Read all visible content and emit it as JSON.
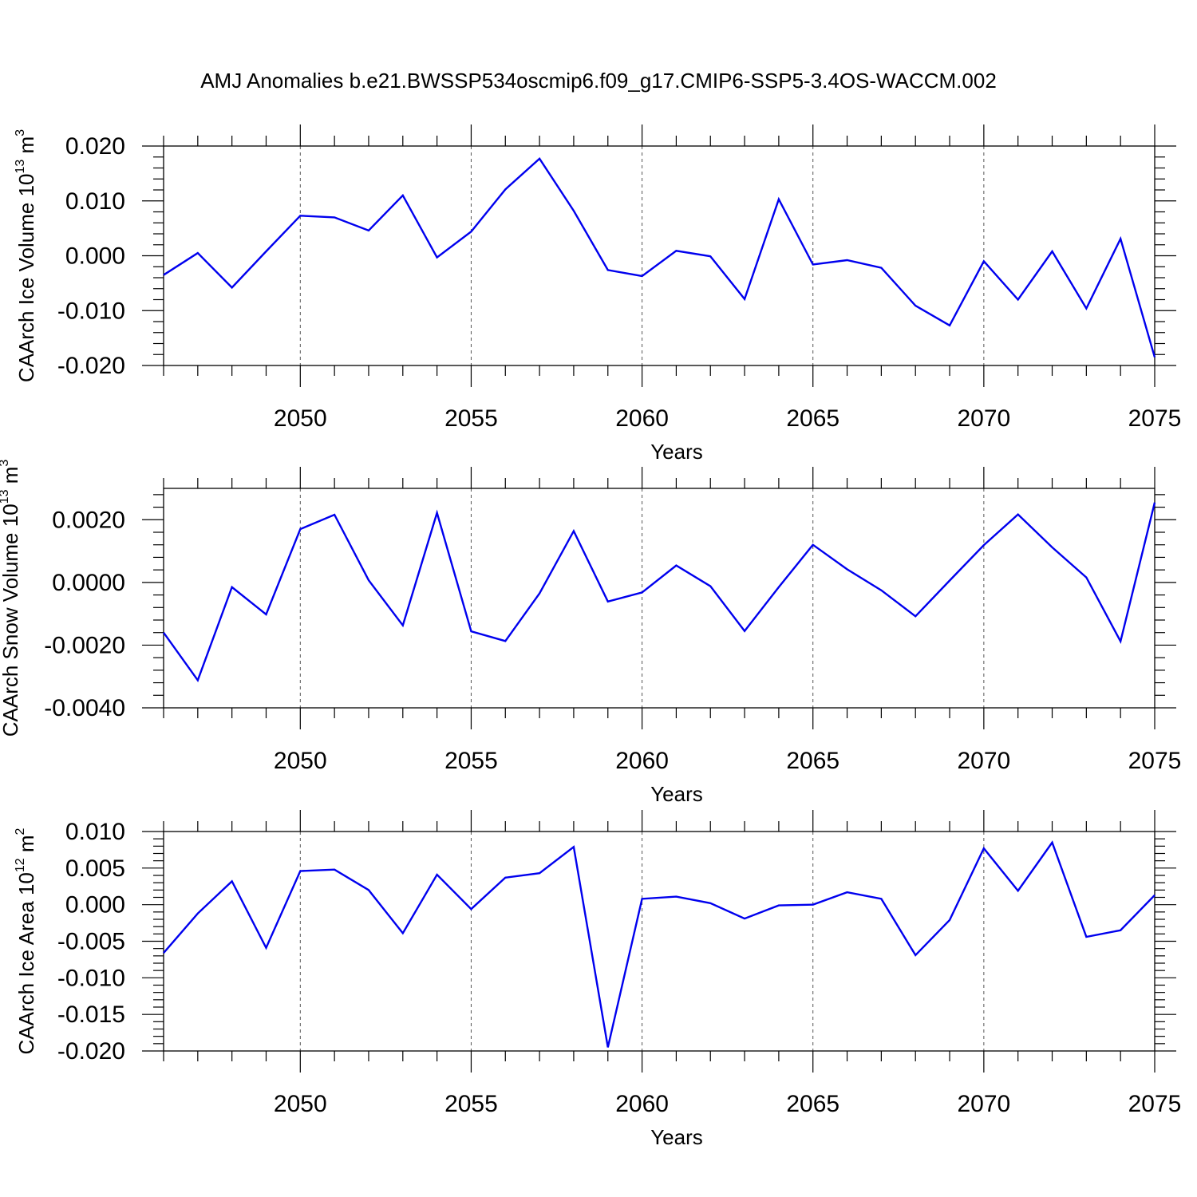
{
  "title": "AMJ Anomalies b.e21.BWSSP534oscmip6.f09_g17.CMIP6-SSP5-3.4OS-WACCM.002",
  "colors": {
    "line": "#0000ee",
    "axis": "#000000",
    "grid": "#555555"
  },
  "chart_data": [
    {
      "type": "line",
      "title": "AMJ Anomalies b.e21.BWSSP534oscmip6.f09_g17.CMIP6-SSP5-3.4OS-WACCM.002",
      "xlabel": "Years",
      "ylabel_base": "CAArch Ice Volume 10",
      "ylabel_exp": "13",
      "ylabel_unit": " m",
      "ylabel_unit_exp": "3",
      "xlim": [
        2046,
        2075
      ],
      "ylim": [
        -0.02,
        0.02
      ],
      "xticks": [
        2050,
        2055,
        2060,
        2065,
        2070,
        2075
      ],
      "xtick_labels": [
        "2050",
        "2055",
        "2060",
        "2065",
        "2070",
        "2075"
      ],
      "yticks": [
        -0.02,
        -0.01,
        0.0,
        0.01,
        0.02
      ],
      "ytick_labels": [
        "-0.020",
        "-0.010",
        "0.000",
        "0.010",
        "0.020"
      ],
      "grid": "vertical dashed at major x ticks",
      "series": [
        {
          "x": [
            2046,
            2047,
            2048,
            2049,
            2050,
            2051,
            2052,
            2053,
            2054,
            2055,
            2056,
            2057,
            2058,
            2059,
            2060,
            2061,
            2062,
            2063,
            2064,
            2065,
            2066,
            2067,
            2068,
            2069,
            2070,
            2071,
            2072,
            2073,
            2074,
            2075
          ],
          "values": [
            -0.0035,
            0.0005,
            -0.0058,
            0.0008,
            0.0073,
            0.007,
            0.0046,
            0.011,
            -0.0003,
            0.0044,
            0.0121,
            0.0177,
            0.0082,
            -0.0026,
            -0.0037,
            0.0009,
            -0.0001,
            -0.0079,
            0.0103,
            -0.0016,
            -0.0008,
            -0.0022,
            -0.0091,
            -0.0127,
            -0.001,
            -0.008,
            0.0008,
            -0.0096,
            0.0031,
            -0.0185
          ]
        }
      ]
    },
    {
      "type": "line",
      "xlabel": "Years",
      "ylabel_base": "CAArch Snow Volume 10",
      "ylabel_exp": "13",
      "ylabel_unit": " m",
      "ylabel_unit_exp": "3",
      "xlim": [
        2046,
        2075
      ],
      "ylim": [
        -0.004,
        0.003
      ],
      "xticks": [
        2050,
        2055,
        2060,
        2065,
        2070,
        2075
      ],
      "xtick_labels": [
        "2050",
        "2055",
        "2060",
        "2065",
        "2070",
        "2075"
      ],
      "yticks": [
        -0.004,
        -0.002,
        0.0,
        0.002
      ],
      "ytick_labels": [
        "-0.0040",
        "-0.0020",
        "0.0000",
        "0.0020"
      ],
      "grid": "vertical dashed at major x ticks",
      "series": [
        {
          "x": [
            2046,
            2047,
            2048,
            2049,
            2050,
            2051,
            2052,
            2053,
            2054,
            2055,
            2056,
            2057,
            2058,
            2059,
            2060,
            2061,
            2062,
            2063,
            2064,
            2065,
            2066,
            2067,
            2068,
            2069,
            2070,
            2071,
            2072,
            2073,
            2074,
            2075
          ],
          "values": [
            -0.0016,
            -0.00312,
            -0.00015,
            -0.00102,
            0.0017,
            0.00216,
            7e-05,
            -0.00137,
            0.00222,
            -0.00156,
            -0.00187,
            -0.00035,
            0.00164,
            -0.00061,
            -0.00032,
            0.00054,
            -0.00012,
            -0.00155,
            -0.00015,
            0.0012,
            0.00042,
            -0.00025,
            -0.00108,
            6e-05,
            0.00119,
            0.00217,
            0.00112,
            0.00016,
            -0.00188,
            0.00255
          ]
        }
      ]
    },
    {
      "type": "line",
      "xlabel": "Years",
      "ylabel_base": "CAArch Ice Area 10",
      "ylabel_exp": "12",
      "ylabel_unit": " m",
      "ylabel_unit_exp": "2",
      "xlim": [
        2046,
        2075
      ],
      "ylim": [
        -0.02,
        0.01
      ],
      "xticks": [
        2050,
        2055,
        2060,
        2065,
        2070,
        2075
      ],
      "xtick_labels": [
        "2050",
        "2055",
        "2060",
        "2065",
        "2070",
        "2075"
      ],
      "yticks": [
        -0.02,
        -0.015,
        -0.01,
        -0.005,
        0.0,
        0.005,
        0.01
      ],
      "ytick_labels": [
        "-0.020",
        "-0.015",
        "-0.010",
        "-0.005",
        "0.000",
        "0.005",
        "0.010"
      ],
      "grid": "vertical dashed at major x ticks",
      "series": [
        {
          "x": [
            2046,
            2047,
            2048,
            2049,
            2050,
            2051,
            2052,
            2053,
            2054,
            2055,
            2056,
            2057,
            2058,
            2059,
            2060,
            2061,
            2062,
            2063,
            2064,
            2065,
            2066,
            2067,
            2068,
            2069,
            2070,
            2071,
            2072,
            2073,
            2074,
            2075
          ],
          "values": [
            -0.0066,
            -0.0012,
            0.0032,
            -0.0059,
            0.0046,
            0.0048,
            0.002,
            -0.0039,
            0.0041,
            -0.0006,
            0.0037,
            0.0043,
            0.0079,
            -0.0195,
            0.0008,
            0.0011,
            0.0002,
            -0.0019,
            -0.0001,
            0.0,
            0.0017,
            0.0008,
            -0.0069,
            -0.0021,
            0.0077,
            0.0019,
            0.0085,
            -0.0044,
            -0.0035,
            0.0013
          ]
        }
      ]
    }
  ]
}
